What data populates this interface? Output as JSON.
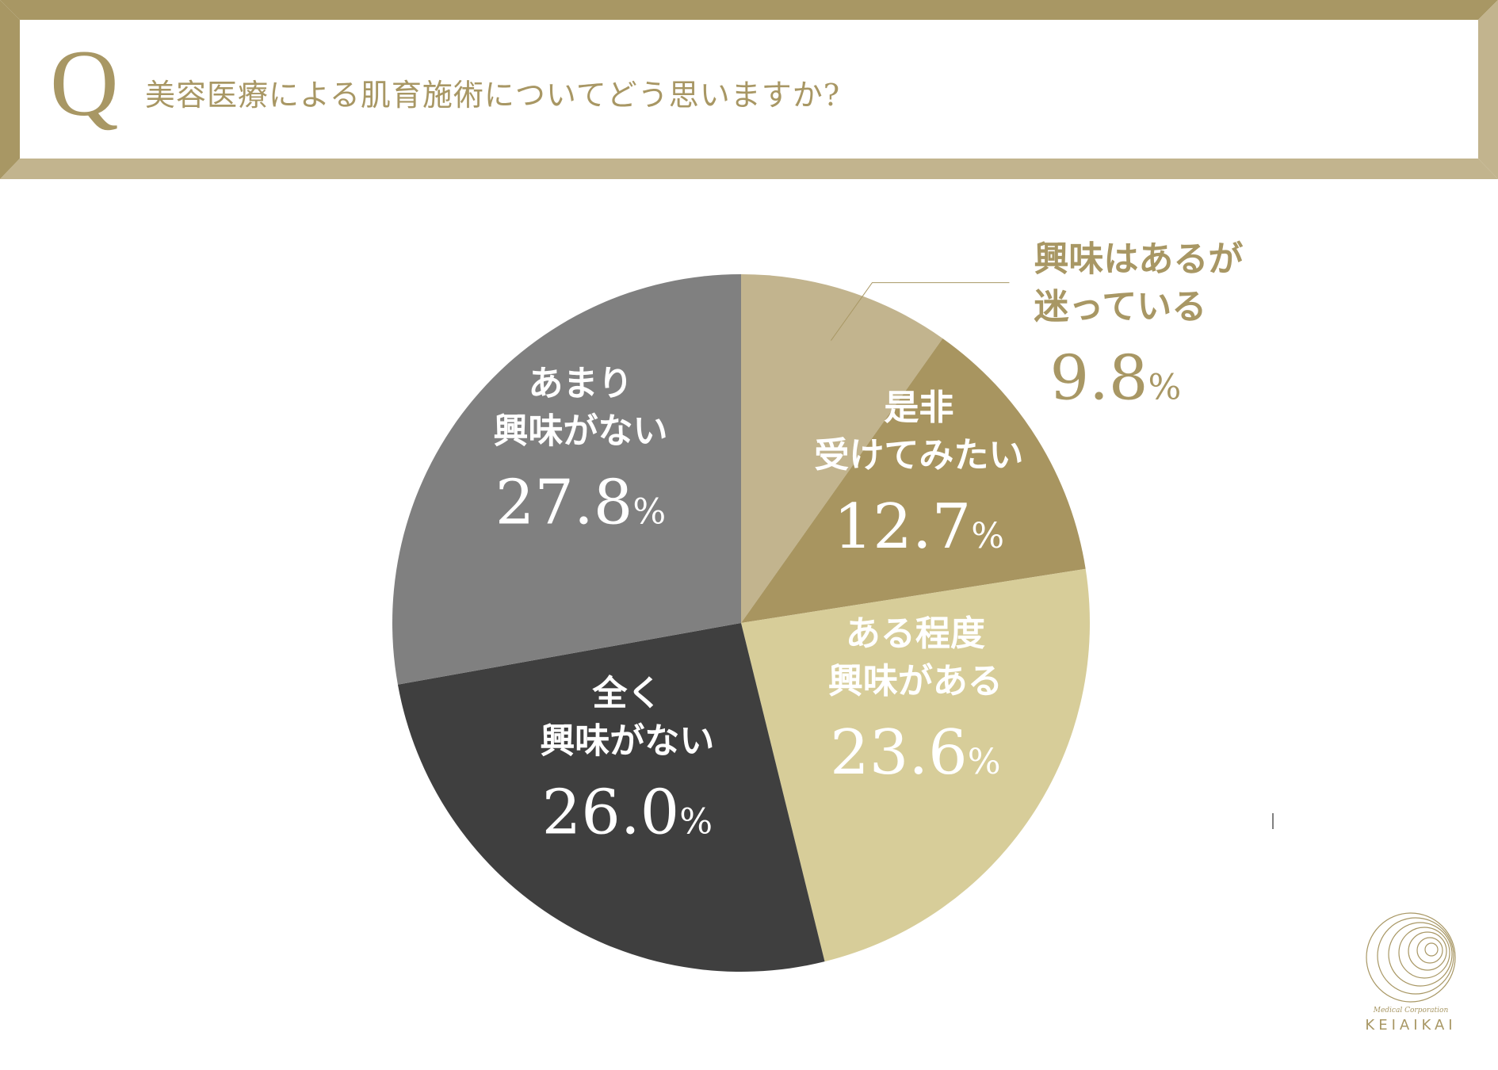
{
  "header": {
    "q_letter": "Q",
    "question": "美容医療による肌育施術についてどう思いますか?"
  },
  "colors": {
    "frame_dark": "#a89764",
    "frame_light": "#c2b48e"
  },
  "chart_data": {
    "type": "pie",
    "start": "12 o'clock, clockwise",
    "slices": [
      {
        "label_lines": [
          "興味はあるが",
          "迷っている"
        ],
        "value": 9.8,
        "display": "9.8",
        "unit": "%",
        "color": "#c2b48e",
        "text_color": "#a89764",
        "outside": true
      },
      {
        "label_lines": [
          "是非",
          "受けてみたい"
        ],
        "value": 12.7,
        "display": "12.7",
        "unit": "%",
        "color": "#a89560",
        "text_color": "#ffffff",
        "outside": false
      },
      {
        "label_lines": [
          "ある程度",
          "興味がある"
        ],
        "value": 23.6,
        "display": "23.6",
        "unit": "%",
        "color": "#d7cd99",
        "text_color": "#ffffff",
        "outside": false
      },
      {
        "label_lines": [
          "全く",
          "興味がない"
        ],
        "value": 26.0,
        "display": "26.0",
        "unit": "%",
        "color": "#3f3f3f",
        "text_color": "#ffffff",
        "outside": false
      },
      {
        "label_lines": [
          "あまり",
          "興味がない"
        ],
        "value": 27.8,
        "display": "27.8",
        "unit": "%",
        "color": "#808080",
        "text_color": "#ffffff",
        "outside": false
      }
    ]
  },
  "logo": {
    "subtitle": "Medical Corporation",
    "name": "KEIAIKAI"
  }
}
